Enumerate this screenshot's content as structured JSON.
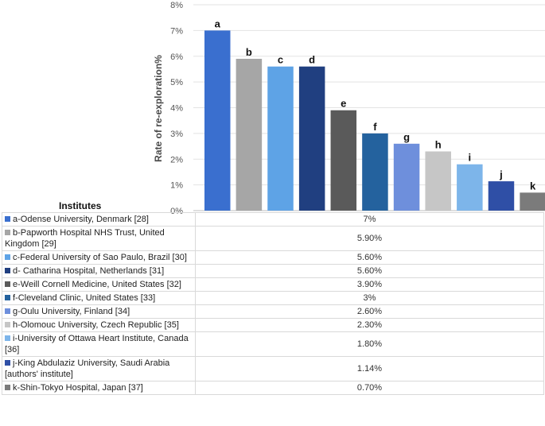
{
  "chart_data": {
    "type": "bar",
    "title": "",
    "xlabel": "Institutes",
    "ylabel": "Rate of re-exploration%",
    "ylim": [
      0,
      8
    ],
    "yticks": [
      0,
      1,
      2,
      3,
      4,
      5,
      6,
      7,
      8
    ],
    "ytick_labels": [
      "0%",
      "1%",
      "2%",
      "3%",
      "4%",
      "5%",
      "6%",
      "7%",
      "8%"
    ],
    "grid": true,
    "categories": [
      "a",
      "b",
      "c",
      "d",
      "e",
      "f",
      "g",
      "h",
      "i",
      "j",
      "k"
    ],
    "values": [
      7,
      5.9,
      5.6,
      5.6,
      3.9,
      3,
      2.6,
      2.3,
      1.8,
      1.14,
      0.7
    ],
    "colors": [
      "#3a6fcf",
      "#a6a6a6",
      "#5ea3e6",
      "#203f80",
      "#5a5a5a",
      "#24629e",
      "#6e8fdc",
      "#c6c6c6",
      "#7db5ea",
      "#2f4fa6",
      "#7b7b7b"
    ]
  },
  "table": {
    "heading": "Institutes",
    "rows": [
      {
        "label": "a-Odense University, Denmark [28]",
        "value": "7%"
      },
      {
        "label": "b-Papworth Hospital NHS Trust, United Kingdom [29]",
        "value": "5.90%"
      },
      {
        "label": "c-Federal University of Sao Paulo, Brazil [30]",
        "value": "5.60%"
      },
      {
        "label": "d- Catharina Hospital, Netherlands [31]",
        "value": "5.60%"
      },
      {
        "label": "e-Weill Cornell Medicine, United States [32]",
        "value": "3.90%"
      },
      {
        "label": "f-Cleveland Clinic, United States [33]",
        "value": "3%"
      },
      {
        "label": "g-Oulu University, Finland [34]",
        "value": "2.60%"
      },
      {
        "label": "h-Olomouc University, Czech Republic [35]",
        "value": "2.30%"
      },
      {
        "label": "i-University of Ottawa Heart Institute, Canada [36]",
        "value": "1.80%"
      },
      {
        "label": "j-King Abdulaziz University, Saudi Arabia [authors' institute]",
        "value": "1.14%"
      },
      {
        "label": "k-Shin-Tokyo Hospital, Japan [37]",
        "value": "0.70%"
      }
    ]
  }
}
